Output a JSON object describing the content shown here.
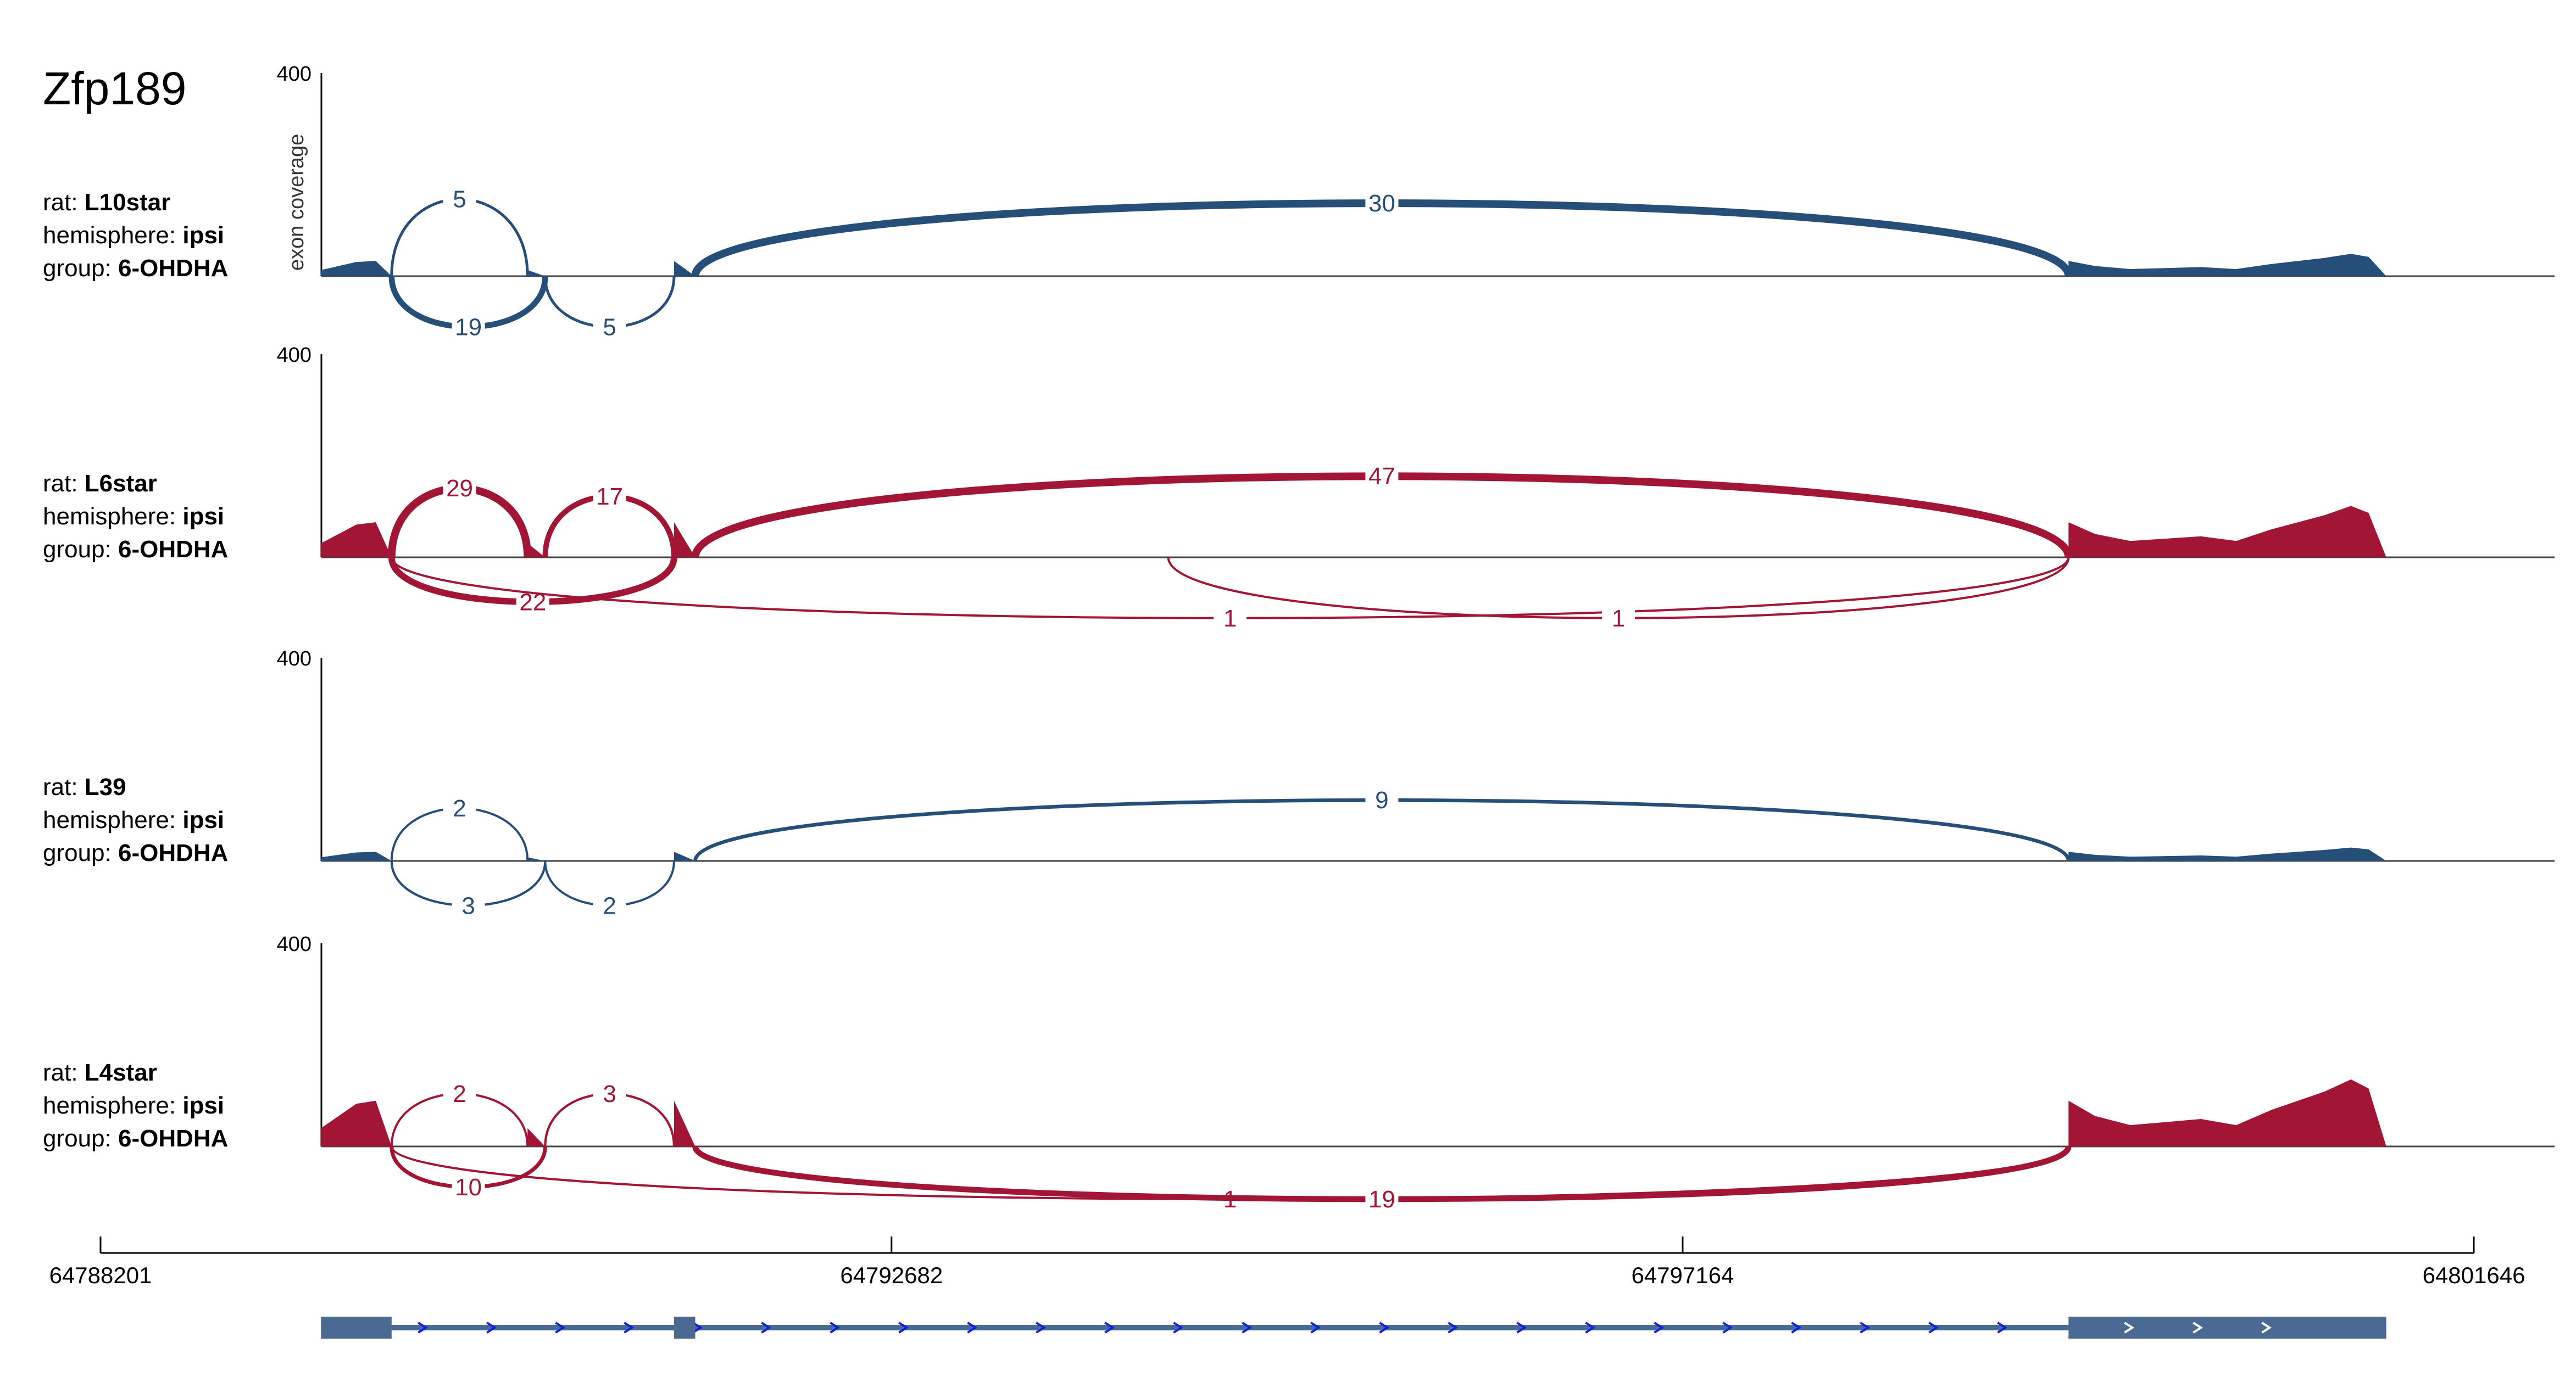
{
  "chart_data": {
    "type": "sashimi",
    "gene": "Zfp189",
    "ylabel": "exon coverage",
    "x_ticks": [
      64788201,
      64792682,
      64797164,
      64801646
    ],
    "xlim": [
      64788201,
      64801646
    ],
    "ylim": [
      0,
      400
    ],
    "y_tick_label": "400",
    "sample_label_keys": {
      "rat": "rat: ",
      "hemisphere": "hemisphere: ",
      "group": "group: "
    },
    "colors": {
      "blue": "#254e78",
      "red": "#a31534",
      "gene": "#4a6a94",
      "arrow": "#1020e0"
    },
    "exons": [
      {
        "start": 64789450,
        "end": 64789850,
        "coverage": [
          [
            64789450,
            12
          ],
          [
            64789550,
            20
          ],
          [
            64789650,
            28
          ],
          [
            64789760,
            30
          ],
          [
            64789850,
            0
          ]
        ]
      },
      {
        "start": 64790620,
        "end": 64790720,
        "coverage": [
          [
            64790620,
            12
          ],
          [
            64790720,
            0
          ]
        ]
      },
      {
        "start": 64791450,
        "end": 64791570,
        "coverage": [
          [
            64791450,
            30
          ],
          [
            64791570,
            0
          ]
        ]
      },
      {
        "start": 64799350,
        "end": 64801150,
        "coverage": [
          [
            64799350,
            30
          ],
          [
            64799500,
            20
          ],
          [
            64799700,
            14
          ],
          [
            64799900,
            16
          ],
          [
            64800100,
            18
          ],
          [
            64800300,
            14
          ],
          [
            64800500,
            24
          ],
          [
            64800650,
            30
          ],
          [
            64800800,
            36
          ],
          [
            64800950,
            44
          ],
          [
            64801050,
            38
          ],
          [
            64801150,
            0
          ]
        ]
      }
    ],
    "samples": [
      {
        "rat": "L10star",
        "hemisphere": "ipsi",
        "group": "6-OHDHA",
        "color": "#254e78",
        "coverage_scale": 1.0,
        "junctions": [
          {
            "start": 64789850,
            "end": 64790620,
            "count": "5",
            "side": "above",
            "height": 0.38
          },
          {
            "start": 64791570,
            "end": 64799350,
            "count": "30",
            "side": "above",
            "height": 0.36
          },
          {
            "start": 64789850,
            "end": 64790720,
            "count": "19",
            "side": "below",
            "height": 0.25
          },
          {
            "start": 64790720,
            "end": 64791450,
            "count": "5",
            "side": "below",
            "height": 0.25
          }
        ]
      },
      {
        "rat": "L6star",
        "hemisphere": "ipsi",
        "group": "6-OHDHA",
        "color": "#a31534",
        "coverage_scale": 2.3,
        "junctions": [
          {
            "start": 64789850,
            "end": 64790620,
            "count": "29",
            "side": "above",
            "height": 0.34
          },
          {
            "start": 64790720,
            "end": 64791450,
            "count": "17",
            "side": "above",
            "height": 0.3
          },
          {
            "start": 64791570,
            "end": 64799350,
            "count": "47",
            "side": "above",
            "height": 0.4
          },
          {
            "start": 64789850,
            "end": 64791450,
            "count": "22",
            "side": "below",
            "height": 0.22
          },
          {
            "start": 64789850,
            "end": 64799350,
            "count": "1",
            "side": "below",
            "height": 0.3
          },
          {
            "start": 64794250,
            "end": 64799350,
            "count": "1",
            "side": "below",
            "height": 0.3
          }
        ]
      },
      {
        "rat": "L39",
        "hemisphere": "ipsi",
        "group": "6-OHDHA",
        "color": "#254e78",
        "coverage_scale": 0.6,
        "junctions": [
          {
            "start": 64789850,
            "end": 64790620,
            "count": "2",
            "side": "above",
            "height": 0.26
          },
          {
            "start": 64791570,
            "end": 64799350,
            "count": "9",
            "side": "above",
            "height": 0.3
          },
          {
            "start": 64789850,
            "end": 64790720,
            "count": "3",
            "side": "below",
            "height": 0.22
          },
          {
            "start": 64790720,
            "end": 64791450,
            "count": "2",
            "side": "below",
            "height": 0.22
          }
        ]
      },
      {
        "rat": "L4star",
        "hemisphere": "ipsi",
        "group": "6-OHDHA",
        "color": "#a31534",
        "coverage_scale": 3.0,
        "junctions": [
          {
            "start": 64789850,
            "end": 64790620,
            "count": "2",
            "side": "above",
            "height": 0.26
          },
          {
            "start": 64790720,
            "end": 64791450,
            "count": "3",
            "side": "above",
            "height": 0.26
          },
          {
            "start": 64789850,
            "end": 64799350,
            "count": "1",
            "side": "below",
            "height": 0.26
          },
          {
            "start": 64789850,
            "end": 64790720,
            "count": "10",
            "side": "below",
            "height": 0.2
          },
          {
            "start": 64791570,
            "end": 64799350,
            "count": "19",
            "side": "below",
            "height": 0.26
          }
        ]
      }
    ],
    "gene_model": {
      "strand": "+",
      "exons": [
        [
          64789450,
          64789850
        ],
        [
          64791450,
          64791570
        ],
        [
          64799350,
          64801150
        ]
      ]
    }
  }
}
